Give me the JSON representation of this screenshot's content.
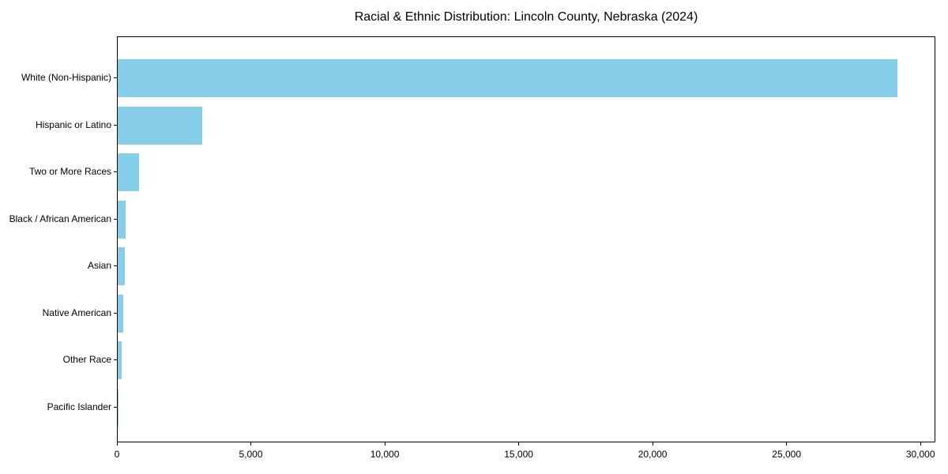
{
  "title": "Racial & Ethnic Distribution: Lincoln County, Nebraska (2024)",
  "chart_data": {
    "type": "bar",
    "orientation": "horizontal",
    "title": "Racial & Ethnic Distribution: Lincoln County, Nebraska (2024)",
    "categories": [
      "White (Non-Hispanic)",
      "Hispanic or Latino",
      "Two or More Races",
      "Black / African American",
      "Asian",
      "Native American",
      "Other Race",
      "Pacific Islander"
    ],
    "values": [
      29100,
      3150,
      800,
      300,
      260,
      200,
      155,
      15
    ],
    "xlim": [
      0,
      30555
    ],
    "x_ticks": [
      0,
      5000,
      10000,
      15000,
      20000,
      25000,
      30000
    ],
    "x_tick_labels": [
      "0",
      "5,000",
      "10,000",
      "15,000",
      "20,000",
      "25,000",
      "30,000"
    ],
    "xlabel": "",
    "ylabel": "",
    "grid": false,
    "legend_position": "none",
    "bar_color": "#87CEEB",
    "axis_color": "#000000",
    "text_color": "#000000",
    "background_color": "#FFFFFF"
  }
}
